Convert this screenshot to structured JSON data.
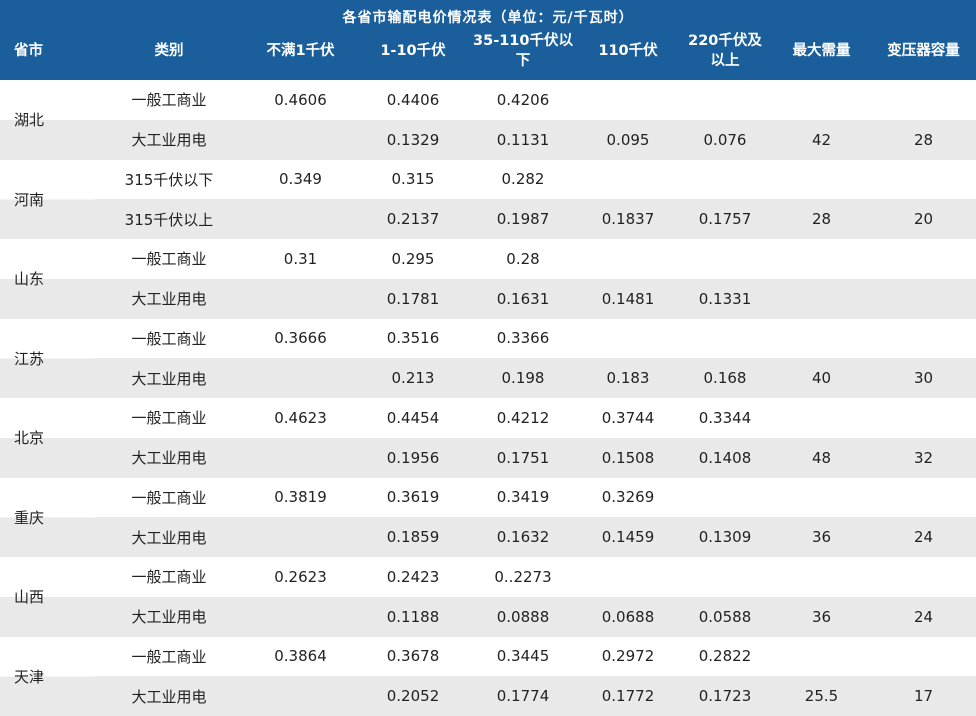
{
  "chart_data": {
    "type": "table",
    "title": "各省市输配电价情况表（单位：元/千瓦时）",
    "columns": [
      "省市",
      "类别",
      "不满1千伏",
      "1-10千伏",
      "35-110千伏以下",
      "110千伏",
      "220千伏及以上",
      "最大需量",
      "变压器容量"
    ],
    "groups": [
      {
        "province": "湖北",
        "rows": [
          {
            "category": "一般工商业",
            "values": [
              "0.4606",
              "0.4406",
              "0.4206",
              "",
              "",
              "",
              ""
            ]
          },
          {
            "category": "大工业用电",
            "values": [
              "",
              "0.1329",
              "0.1131",
              "0.095",
              "0.076",
              "42",
              "28"
            ]
          }
        ]
      },
      {
        "province": "河南",
        "rows": [
          {
            "category": "315千伏以下",
            "values": [
              "0.349",
              "0.315",
              "0.282",
              "",
              "",
              "",
              ""
            ]
          },
          {
            "category": "315千伏以上",
            "values": [
              "",
              "0.2137",
              "0.1987",
              "0.1837",
              "0.1757",
              "28",
              "20"
            ]
          }
        ]
      },
      {
        "province": "山东",
        "rows": [
          {
            "category": "一般工商业",
            "values": [
              "0.31",
              "0.295",
              "0.28",
              "",
              "",
              "",
              ""
            ]
          },
          {
            "category": "大工业用电",
            "values": [
              "",
              "0.1781",
              "0.1631",
              "0.1481",
              "0.1331",
              "",
              ""
            ]
          }
        ]
      },
      {
        "province": "江苏",
        "rows": [
          {
            "category": "一般工商业",
            "values": [
              "0.3666",
              "0.3516",
              "0.3366",
              "",
              "",
              "",
              ""
            ]
          },
          {
            "category": "大工业用电",
            "values": [
              "",
              "0.213",
              "0.198",
              "0.183",
              "0.168",
              "40",
              "30"
            ]
          }
        ]
      },
      {
        "province": "北京",
        "rows": [
          {
            "category": "一般工商业",
            "values": [
              "0.4623",
              "0.4454",
              "0.4212",
              "0.3744",
              "0.3344",
              "",
              ""
            ]
          },
          {
            "category": "大工业用电",
            "values": [
              "",
              "0.1956",
              "0.1751",
              "0.1508",
              "0.1408",
              "48",
              "32"
            ]
          }
        ]
      },
      {
        "province": "重庆",
        "rows": [
          {
            "category": "一般工商业",
            "values": [
              "0.3819",
              "0.3619",
              "0.3419",
              "0.3269",
              "",
              "",
              ""
            ]
          },
          {
            "category": "大工业用电",
            "values": [
              "",
              "0.1859",
              "0.1632",
              "0.1459",
              "0.1309",
              "36",
              "24"
            ]
          }
        ]
      },
      {
        "province": "山西",
        "rows": [
          {
            "category": "一般工商业",
            "values": [
              "0.2623",
              "0.2423",
              "0..2273",
              "",
              "",
              "",
              ""
            ]
          },
          {
            "category": "大工业用电",
            "values": [
              "",
              "0.1188",
              "0.0888",
              "0.0688",
              "0.0588",
              "36",
              "24"
            ]
          }
        ]
      },
      {
        "province": "天津",
        "rows": [
          {
            "category": "一般工商业",
            "values": [
              "0.3864",
              "0.3678",
              "0.3445",
              "0.2972",
              "0.2822",
              "",
              ""
            ]
          },
          {
            "category": "大工业用电",
            "values": [
              "",
              "0.2052",
              "0.1774",
              "0.1772",
              "0.1723",
              "25.5",
              "17"
            ]
          }
        ]
      }
    ]
  },
  "colors": {
    "header_bg": "#1B5E9C",
    "header_text": "#FFFFFF",
    "row_alt_bg": "#E9E9E9",
    "body_text": "#222222"
  }
}
